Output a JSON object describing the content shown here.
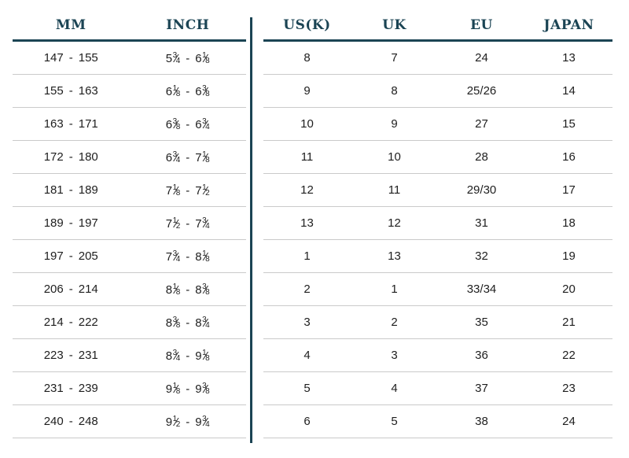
{
  "colors": {
    "accent": "#1b4454",
    "rule": "#cacaca",
    "ink": "#1e1e1e"
  },
  "size_chart": {
    "left_headers": [
      {
        "label": "MM"
      },
      {
        "label": "INCH"
      }
    ],
    "right_headers": [
      {
        "label": "US(K)"
      },
      {
        "label": "UK"
      },
      {
        "label": "EU"
      },
      {
        "label": "JAPAN"
      }
    ],
    "range_separator": "-",
    "rows": [
      {
        "mm_from": "147",
        "mm_to": "155",
        "inch_from": {
          "whole": "5",
          "num": "3",
          "den": "4"
        },
        "inch_to": {
          "whole": "6",
          "num": "1",
          "den": "8"
        },
        "us": "8",
        "uk": "7",
        "eu": "24",
        "japan": "13"
      },
      {
        "mm_from": "155",
        "mm_to": "163",
        "inch_from": {
          "whole": "6",
          "num": "1",
          "den": "8"
        },
        "inch_to": {
          "whole": "6",
          "num": "3",
          "den": "8"
        },
        "us": "9",
        "uk": "8",
        "eu": "25/26",
        "japan": "14"
      },
      {
        "mm_from": "163",
        "mm_to": "171",
        "inch_from": {
          "whole": "6",
          "num": "3",
          "den": "8"
        },
        "inch_to": {
          "whole": "6",
          "num": "3",
          "den": "4"
        },
        "us": "10",
        "uk": "9",
        "eu": "27",
        "japan": "15"
      },
      {
        "mm_from": "172",
        "mm_to": "180",
        "inch_from": {
          "whole": "6",
          "num": "3",
          "den": "4"
        },
        "inch_to": {
          "whole": "7",
          "num": "1",
          "den": "8"
        },
        "us": "11",
        "uk": "10",
        "eu": "28",
        "japan": "16"
      },
      {
        "mm_from": "181",
        "mm_to": "189",
        "inch_from": {
          "whole": "7",
          "num": "1",
          "den": "8"
        },
        "inch_to": {
          "whole": "7",
          "num": "1",
          "den": "2"
        },
        "us": "12",
        "uk": "11",
        "eu": "29/30",
        "japan": "17"
      },
      {
        "mm_from": "189",
        "mm_to": "197",
        "inch_from": {
          "whole": "7",
          "num": "1",
          "den": "2"
        },
        "inch_to": {
          "whole": "7",
          "num": "3",
          "den": "4"
        },
        "us": "13",
        "uk": "12",
        "eu": "31",
        "japan": "18"
      },
      {
        "mm_from": "197",
        "mm_to": "205",
        "inch_from": {
          "whole": "7",
          "num": "3",
          "den": "4"
        },
        "inch_to": {
          "whole": "8",
          "num": "1",
          "den": "8"
        },
        "us": "1",
        "uk": "13",
        "eu": "32",
        "japan": "19"
      },
      {
        "mm_from": "206",
        "mm_to": "214",
        "inch_from": {
          "whole": "8",
          "num": "1",
          "den": "8"
        },
        "inch_to": {
          "whole": "8",
          "num": "3",
          "den": "8"
        },
        "us": "2",
        "uk": "1",
        "eu": "33/34",
        "japan": "20"
      },
      {
        "mm_from": "214",
        "mm_to": "222",
        "inch_from": {
          "whole": "8",
          "num": "3",
          "den": "8"
        },
        "inch_to": {
          "whole": "8",
          "num": "3",
          "den": "4"
        },
        "us": "3",
        "uk": "2",
        "eu": "35",
        "japan": "21"
      },
      {
        "mm_from": "223",
        "mm_to": "231",
        "inch_from": {
          "whole": "8",
          "num": "3",
          "den": "4"
        },
        "inch_to": {
          "whole": "9",
          "num": "1",
          "den": "8"
        },
        "us": "4",
        "uk": "3",
        "eu": "36",
        "japan": "22"
      },
      {
        "mm_from": "231",
        "mm_to": "239",
        "inch_from": {
          "whole": "9",
          "num": "1",
          "den": "8"
        },
        "inch_to": {
          "whole": "9",
          "num": "3",
          "den": "8"
        },
        "us": "5",
        "uk": "4",
        "eu": "37",
        "japan": "23"
      },
      {
        "mm_from": "240",
        "mm_to": "248",
        "inch_from": {
          "whole": "9",
          "num": "1",
          "den": "2"
        },
        "inch_to": {
          "whole": "9",
          "num": "3",
          "den": "4"
        },
        "us": "6",
        "uk": "5",
        "eu": "38",
        "japan": "24"
      }
    ]
  }
}
